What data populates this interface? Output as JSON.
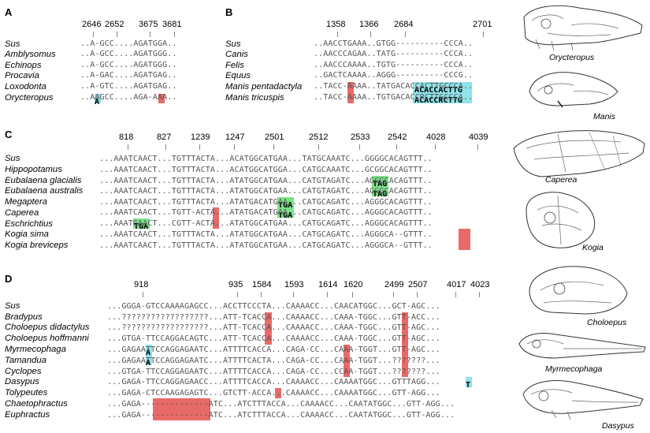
{
  "panels": {
    "A": {
      "letter": "A",
      "ticks": [
        "2646",
        "2652",
        "3675",
        "3681"
      ],
      "rows": [
        {
          "species": "Sus",
          "seq": "..A-GCC....AGATGGA.."
        },
        {
          "species": "Amblysomus",
          "seq": "..A-GCC....AGATGGG.."
        },
        {
          "species": "Echinops",
          "seq": "..A-GCC....AGATGGG.."
        },
        {
          "species": "Procavia",
          "seq": "..A-GAC....AGATGAG.."
        },
        {
          "species": "Loxodonta",
          "seq": "..A-GTC....AGATGAG.."
        },
        {
          "species": "Orycteropus",
          "seq": "..AAGCC....AGA-AAA.."
        }
      ]
    },
    "B": {
      "letter": "B",
      "ticks": [
        "1358",
        "1366",
        "2684",
        "2701"
      ],
      "rows": [
        {
          "species": "Sus",
          "seq": "..AACCTGAAA..GTGG----------CCCA.."
        },
        {
          "species": "Canis",
          "seq": "..AACCCAGAA..TATG----------CCCA.."
        },
        {
          "species": "Felis",
          "seq": "..AACCCAAAA..TGTG----------CCCA.."
        },
        {
          "species": "Equus",
          "seq": "..GACTCAAAA..AGGG----------CCCG.."
        },
        {
          "species": "Manis pentadactyla",
          "seq": "..TACC-AAAA..TATGACACCACTTGCCCA.."
        },
        {
          "species": "Manis tricuspis",
          "seq": "..TACC-AAAA..TGTGACACCRCTTGCCCA.."
        }
      ]
    },
    "C": {
      "letter": "C",
      "ticks": [
        "818",
        "827",
        "1239",
        "1247",
        "2501",
        "2512",
        "2533",
        "2542",
        "4028",
        "4039"
      ],
      "rows": [
        {
          "species": "Sus",
          "seq": "...AAATCAACT...TGTTTACTA...ACATGGCATGAA...TATGCAAATC...GGGGCACAGTTT.."
        },
        {
          "species": "Hippopotamus",
          "seq": "...AAATCAACT...TGTTTACTA...ACATGGCATGGA...CATGCAAATC...GCGGCACAGTTT.."
        },
        {
          "species": "Eubalaena glacialis",
          "seq": "...AAATCAACT...TGTTTACTA...ATATGGCATGAA...CATGTAGATC...AGGGCACAGTTT.."
        },
        {
          "species": "Eubalaena australis",
          "seq": "...AAATCAACT...TGTTTACTA...ATATGGCATGAA...CATGTAGATC...AGGGCACAGTTT.."
        },
        {
          "species": "Megaptera",
          "seq": "...AAATCAACT...TGTTTACTA...ATATGACATGAA...CATGCAGATC...AGGGCACAGTTT.."
        },
        {
          "species": "Caperea",
          "seq": "...AAATCAACT...TGTT-ACTA...ATATGACATGAA...CATGCAGATC...AGGGCACAGTTT.."
        },
        {
          "species": "Eschrichtius",
          "seq": "...AAATGAACT...CGTT-ACTA...ATATGGCATGAA...CATGCAGATC...AGGGCACAGTTT.."
        },
        {
          "species": "Kogia sima",
          "seq": "...AAATCAACT...TGTTTACTA...ATATGGCATGAA...CATGCAGATC...AGGGCA--GTTT.."
        },
        {
          "species": "Kogia breviceps",
          "seq": "...AAATCAACT...TGTTTACTA...ATATGGCATGAA...CATGCAGATC...AGGGCA--GTTT.."
        }
      ]
    },
    "D": {
      "letter": "D",
      "ticks": [
        "918",
        "935",
        "1584",
        "1593",
        "1614",
        "1620",
        "2499",
        "2507",
        "4017",
        "4023"
      ],
      "rows": [
        {
          "species": "Sus",
          "seq": "...GGGA-GTCCAAAAGAGCC...ACCTTCCCTA...CAAAACC...CAACATGGC...GCT-AGC..."
        },
        {
          "species": "Bradypus",
          "seq": "...??????????????????...ATT-TCACCA...CAAAACC...CAAA-TGGC...GTT-ACC..."
        },
        {
          "species": "Choloepus didactylus",
          "seq": "...??????????????????...ATT-TCACCA...CAAAACC...CAAA-TGGC...GTT-AGC..."
        },
        {
          "species": "Choloepus hoffmanni",
          "seq": "...GTGA-TTCCAGGACAGTC...ATT-TCACCA...CAAAACC...CAAA-TGGC...GTT-AGC..."
        },
        {
          "species": "Myrmecophaga",
          "seq": "...GAGAATTCCAGGAGAATC...ATTTTCACCA...CAGA-CC...CAAA-TGGT...GTT-AGC..."
        },
        {
          "species": "Tamandua",
          "seq": "...GAGAATTCCAGGAGAATC...ATTTTCACTA...CAGA-CC...CAAA-TGGT...???????..."
        },
        {
          "species": "Cyclopes",
          "seq": "...GTGA-TTCCAGGAGAATC...ATTTTCACCA...CAGA-CC...CCAA-TGGT...???????..."
        },
        {
          "species": "Dasypus",
          "seq": "...GAGA-TTCCAGGAGAACC...ATTTTCACCA...CAAAACC...CAAAATGGC...GTTTAGG..."
        },
        {
          "species": "Tolypeutes",
          "seq": "...GAGA-CTCCAAGAGAGTC...GTCTT-ACCA...CAAAACC...CAAAATGGC...GTT-AGG..."
        },
        {
          "species": "Chaetophractus",
          "seq": "...GAGA--------------ATC...ATCTTTACCA...CAAAACC...CAATATGGC...GTT-AGG..."
        },
        {
          "species": "Euphractus",
          "seq": "...GAGA--------------ATC...ATCTTTACCA...CAAAACC...CAATATGGC...GTT-AGG..."
        }
      ]
    }
  },
  "highlights": {
    "A_cyan": "A",
    "B_cyan_1": "ACACCACTTG",
    "B_cyan_2": "ACACCRCTTG",
    "C_green_tag1": "TAG",
    "C_green_tag2": "TAG",
    "C_green_tga1": "TGA",
    "C_green_tga2": "TGA",
    "C_green_tga3": "TGA",
    "D_cyan_1": "A",
    "D_cyan_2": "A",
    "D_cyan_3": "T"
  },
  "skulls": [
    {
      "name": "Orycteropus"
    },
    {
      "name": "Manis"
    },
    {
      "name": "Caperea"
    },
    {
      "name": "Kogia"
    },
    {
      "name": "Choloepus"
    },
    {
      "name": "Myrmecophaga"
    },
    {
      "name": "Dasypus"
    }
  ],
  "colors": {
    "red": "#e86a68",
    "cyan": "#8fe3ea",
    "green": "#7ee08a"
  }
}
